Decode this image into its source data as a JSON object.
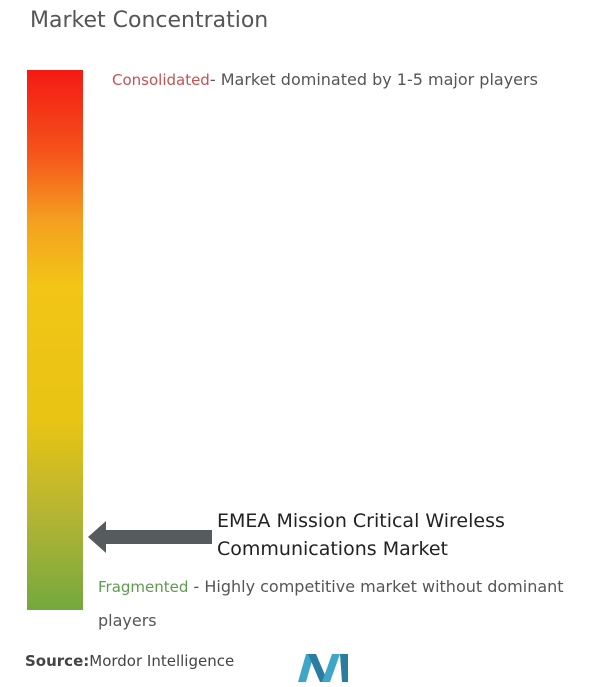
{
  "title": "Market Concentration",
  "top_label": {
    "term": "Consolidated",
    "description": "- Market dominated by 1-5 major players"
  },
  "marker": {
    "line1": "EMEA Mission Critical Wireless",
    "line2": "Communications Market"
  },
  "bottom_label": {
    "term": "Fragmented",
    "description": " - Highly competitive market without dominant",
    "continuation": "players"
  },
  "source": {
    "label": "Source:",
    "text": "Mordor Intelligence"
  }
}
